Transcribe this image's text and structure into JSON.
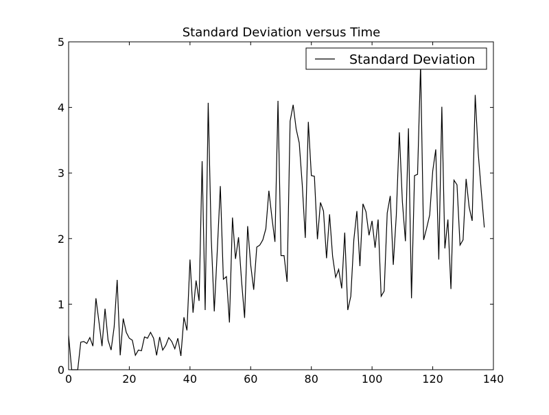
{
  "chart_data": {
    "type": "line",
    "title": "Standard Deviation versus Time",
    "xlabel": "",
    "ylabel": "",
    "xlim": [
      0,
      140
    ],
    "ylim": [
      0,
      5
    ],
    "x_ticks": [
      0,
      20,
      40,
      60,
      80,
      100,
      120,
      140
    ],
    "y_ticks": [
      0,
      1,
      2,
      3,
      4,
      5
    ],
    "grid": false,
    "legend_position": "top-right",
    "line_color": "#000000",
    "series": [
      {
        "name": "Standard Deviation",
        "x": [
          0,
          1,
          2,
          3,
          4,
          5,
          6,
          7,
          8,
          9,
          10,
          11,
          12,
          13,
          14,
          15,
          16,
          17,
          18,
          19,
          20,
          21,
          22,
          23,
          24,
          25,
          26,
          27,
          28,
          29,
          30,
          31,
          32,
          33,
          34,
          35,
          36,
          37,
          38,
          39,
          40,
          41,
          42,
          43,
          44,
          45,
          46,
          47,
          48,
          49,
          50,
          51,
          52,
          53,
          54,
          55,
          56,
          57,
          58,
          59,
          60,
          61,
          62,
          63,
          64,
          65,
          66,
          67,
          68,
          69,
          70,
          71,
          72,
          73,
          74,
          75,
          76,
          77,
          78,
          79,
          80,
          81,
          82,
          83,
          84,
          85,
          86,
          87,
          88,
          89,
          90,
          91,
          92,
          93,
          94,
          95,
          96,
          97,
          98,
          99,
          100,
          101,
          102,
          103,
          104,
          105,
          106,
          107,
          108,
          109,
          110,
          111,
          112,
          113,
          114,
          115,
          116,
          117,
          118,
          119,
          120,
          121,
          122,
          123,
          124,
          125,
          126,
          127,
          128,
          129,
          130,
          131,
          132,
          133,
          134,
          135,
          136,
          137
        ],
        "values": [
          0.52,
          0.0,
          0.0,
          0.0,
          0.42,
          0.43,
          0.4,
          0.49,
          0.36,
          1.09,
          0.73,
          0.36,
          0.93,
          0.45,
          0.3,
          0.65,
          1.37,
          0.22,
          0.78,
          0.57,
          0.48,
          0.45,
          0.22,
          0.3,
          0.29,
          0.5,
          0.48,
          0.57,
          0.48,
          0.22,
          0.5,
          0.3,
          0.37,
          0.49,
          0.43,
          0.32,
          0.48,
          0.21,
          0.8,
          0.6,
          1.68,
          0.87,
          1.36,
          1.05,
          3.18,
          0.91,
          4.07,
          2.01,
          0.89,
          1.82,
          2.8,
          1.38,
          1.42,
          0.72,
          2.32,
          1.69,
          2.02,
          1.35,
          0.79,
          2.19,
          1.6,
          1.22,
          1.87,
          1.9,
          1.98,
          2.15,
          2.73,
          2.32,
          1.95,
          4.1,
          1.74,
          1.74,
          1.34,
          3.79,
          4.04,
          3.67,
          3.46,
          2.82,
          2.01,
          3.78,
          2.96,
          2.95,
          1.99,
          2.55,
          2.42,
          1.7,
          2.37,
          1.73,
          1.41,
          1.53,
          1.24,
          2.09,
          0.91,
          1.12,
          1.98,
          2.42,
          1.58,
          2.53,
          2.41,
          2.05,
          2.27,
          1.86,
          2.29,
          1.12,
          1.2,
          2.39,
          2.65,
          1.6,
          2.36,
          3.62,
          2.56,
          1.96,
          3.68,
          1.09,
          2.96,
          2.98,
          4.65,
          1.98,
          2.16,
          2.36,
          3.03,
          3.36,
          1.68,
          4.01,
          1.85,
          2.29,
          1.23,
          2.89,
          2.82,
          1.9,
          1.98,
          2.91,
          2.48,
          2.27,
          4.19,
          3.3,
          2.72,
          2.17
        ]
      }
    ]
  }
}
